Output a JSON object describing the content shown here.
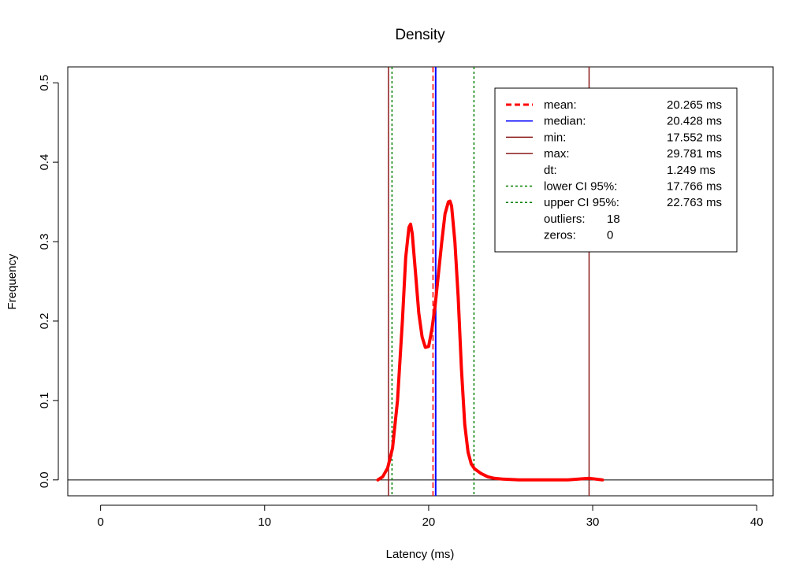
{
  "chart_data": {
    "type": "line",
    "title": "Density",
    "xlabel": "Latency (ms)",
    "ylabel": "Frequency",
    "xlim": [
      -2,
      41
    ],
    "ylim": [
      -0.02,
      0.52
    ],
    "x_ticks": [
      "0",
      "10",
      "20",
      "30",
      "40"
    ],
    "y_ticks": [
      "0.0",
      "0.1",
      "0.2",
      "0.3",
      "0.4",
      "0.5"
    ],
    "grid": false,
    "legend_position": "top-right",
    "series": [
      {
        "color": "#ff0000",
        "x": [
          16.9,
          17.2,
          17.5,
          17.8,
          18.1,
          18.4,
          18.6,
          18.8,
          18.9,
          19.0,
          19.2,
          19.4,
          19.6,
          19.8,
          20.0,
          20.2,
          20.4,
          20.6,
          20.8,
          21.0,
          21.2,
          21.3,
          21.4,
          21.6,
          21.8,
          22.0,
          22.2,
          22.4,
          22.6,
          22.8,
          23.2,
          23.6,
          24.0,
          24.5,
          25.5,
          27.0,
          28.5,
          29.8,
          30.6
        ],
        "y": [
          0.0,
          0.004,
          0.015,
          0.04,
          0.1,
          0.2,
          0.28,
          0.318,
          0.322,
          0.31,
          0.26,
          0.21,
          0.18,
          0.167,
          0.168,
          0.19,
          0.22,
          0.26,
          0.3,
          0.335,
          0.35,
          0.351,
          0.345,
          0.3,
          0.23,
          0.14,
          0.07,
          0.035,
          0.02,
          0.014,
          0.008,
          0.004,
          0.002,
          0.001,
          0.0,
          0.0,
          0.0,
          0.002,
          0.0
        ]
      }
    ],
    "vertical_lines": [
      {
        "label": "min",
        "x": 17.552,
        "color": "#8b1a1a",
        "style": "solid"
      },
      {
        "label": "lower CI 95%",
        "x": 17.766,
        "color": "#008000",
        "style": "dotted"
      },
      {
        "label": "median",
        "x": 20.428,
        "color": "#0000ff",
        "style": "solid"
      },
      {
        "label": "mean",
        "x": 20.265,
        "color": "#ff0000",
        "style": "dashed"
      },
      {
        "label": "upper CI 95%",
        "x": 22.763,
        "color": "#008000",
        "style": "dotted"
      },
      {
        "label": "max",
        "x": 29.781,
        "color": "#8b1a1a",
        "style": "solid"
      }
    ],
    "horizontal_lines": [
      {
        "y": 0.0,
        "color": "#000000"
      }
    ],
    "legend": [
      {
        "label": "mean:",
        "value": "20.265 ms",
        "color": "#ff0000",
        "style": "dashed"
      },
      {
        "label": "median:",
        "value": "20.428 ms",
        "color": "#0000ff",
        "style": "solid"
      },
      {
        "label": "min:",
        "value": "17.552 ms",
        "color": "#8b1a1a",
        "style": "solid"
      },
      {
        "label": "max:",
        "value": "29.781 ms",
        "color": "#8b1a1a",
        "style": "solid"
      },
      {
        "label": "dt:",
        "value": "1.249 ms",
        "color": "",
        "style": "none"
      },
      {
        "label": "lower CI 95%:",
        "value": "17.766 ms",
        "color": "#008000",
        "style": "dotted"
      },
      {
        "label": "upper CI 95%:",
        "value": "22.763 ms",
        "color": "#008000",
        "style": "dotted"
      },
      {
        "label": "outliers:",
        "value": "18",
        "color": "",
        "style": "none"
      },
      {
        "label": "zeros:",
        "value": "0",
        "color": "",
        "style": "none"
      }
    ]
  }
}
